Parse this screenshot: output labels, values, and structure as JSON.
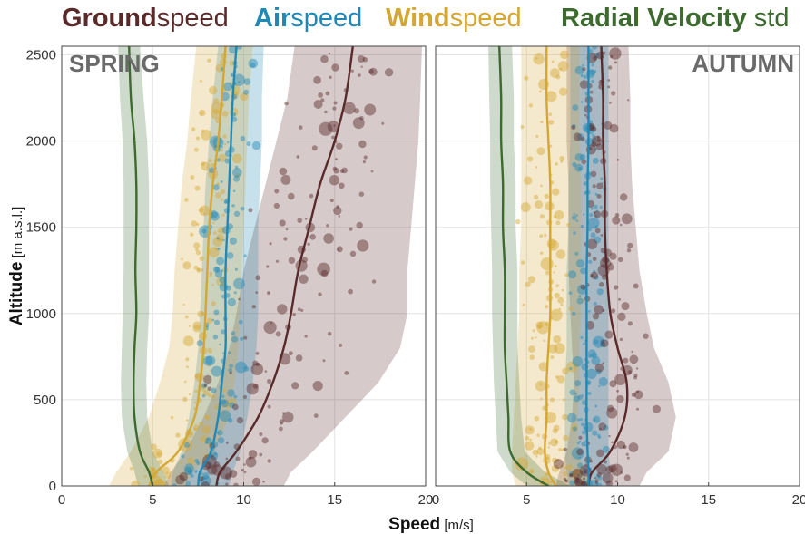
{
  "legend": {
    "groundspeed": {
      "bold": "Ground",
      "light": "speed"
    },
    "airspeed": {
      "bold": "Air",
      "light": "speed"
    },
    "windspeed": {
      "bold": "Wind",
      "light": "speed"
    },
    "radial": {
      "bold": "Radial Velocity",
      "light": "std"
    }
  },
  "colors": {
    "groundspeed": "#5a2a2a",
    "airspeed": "#2088b5",
    "windspeed": "#d4a632",
    "radial": "#3d6a2e"
  },
  "chart_data": [
    {
      "type": "line",
      "panel": "SPRING",
      "xlabel": "Speed",
      "xunit": "[m/s]",
      "ylabel": "Altitude",
      "yunit": "[m a.s.l.]",
      "xlim": [
        0,
        20
      ],
      "ylim": [
        0,
        2550
      ],
      "xticks": [
        0,
        5,
        10,
        15,
        20
      ],
      "yticks": [
        0,
        500,
        1000,
        1500,
        2000,
        2500
      ],
      "grid": true,
      "series": [
        {
          "name": "Groundspeed",
          "key": "groundspeed",
          "x": [
            8.5,
            8.7,
            9.6,
            10.8,
            11.6,
            12.2,
            12.6,
            13.0,
            13.6,
            14.2,
            15.0,
            15.6,
            16.0
          ],
          "y": [
            0,
            80,
            200,
            400,
            600,
            800,
            1000,
            1250,
            1500,
            1750,
            2000,
            2250,
            2550
          ],
          "band_lo": [
            5.6,
            6.0,
            6.8,
            7.8,
            8.6,
            9.2,
            9.6,
            10.0,
            10.6,
            11.2,
            11.8,
            12.4,
            12.8
          ],
          "band_hi": [
            12.2,
            12.6,
            13.8,
            15.6,
            17.4,
            18.6,
            19.0,
            19.0,
            19.2,
            19.4,
            19.6,
            19.7,
            19.8
          ]
        },
        {
          "name": "Airspeed",
          "key": "airspeed",
          "x": [
            7.5,
            7.6,
            8.2,
            8.6,
            8.8,
            9.0,
            9.0,
            9.0,
            9.1,
            9.2,
            9.3,
            9.4,
            9.6
          ],
          "y": [
            0,
            80,
            200,
            400,
            600,
            800,
            1000,
            1250,
            1500,
            1750,
            2000,
            2250,
            2550
          ],
          "band_lo": [
            6.0,
            6.1,
            6.6,
            7.0,
            7.3,
            7.5,
            7.6,
            7.7,
            7.8,
            7.9,
            8.1,
            8.3,
            8.6
          ],
          "band_hi": [
            9.2,
            9.4,
            9.8,
            10.2,
            10.5,
            10.7,
            10.8,
            10.8,
            10.8,
            10.9,
            11.0,
            11.0,
            11.1
          ]
        },
        {
          "name": "Windspeed",
          "key": "windspeed",
          "x": [
            4.8,
            5.2,
            6.4,
            7.3,
            7.6,
            7.8,
            7.9,
            8.0,
            8.1,
            8.3,
            8.6,
            8.8,
            9.0
          ],
          "y": [
            0,
            80,
            200,
            400,
            600,
            800,
            1000,
            1250,
            1500,
            1750,
            2000,
            2250,
            2550
          ],
          "band_lo": [
            2.6,
            3.0,
            3.8,
            4.8,
            5.4,
            5.9,
            6.1,
            6.2,
            6.4,
            6.6,
            6.9,
            7.1,
            7.4
          ],
          "band_hi": [
            6.8,
            7.2,
            8.4,
            9.2,
            9.5,
            9.7,
            9.8,
            9.9,
            10.0,
            10.1,
            10.2,
            10.3,
            10.5
          ]
        },
        {
          "name": "Radial Velocity std",
          "key": "radial",
          "x": [
            5.0,
            4.8,
            4.3,
            4.0,
            3.95,
            4.0,
            4.1,
            4.05,
            4.1,
            4.1,
            4.0,
            3.8,
            3.7
          ],
          "y": [
            0,
            80,
            200,
            400,
            600,
            800,
            1000,
            1250,
            1500,
            1750,
            2000,
            2250,
            2550
          ],
          "band_lo": [
            4.2,
            4.0,
            3.6,
            3.3,
            3.25,
            3.3,
            3.35,
            3.4,
            3.4,
            3.4,
            3.35,
            3.2,
            3.1
          ],
          "band_hi": [
            5.9,
            5.6,
            5.0,
            4.7,
            4.65,
            4.7,
            4.8,
            4.8,
            4.8,
            4.8,
            4.7,
            4.5,
            4.3
          ]
        }
      ]
    },
    {
      "type": "line",
      "panel": "AUTUMN",
      "xlabel": "Speed",
      "xunit": "[m/s]",
      "xlim": [
        0,
        20
      ],
      "ylim": [
        0,
        2550
      ],
      "xticks": [
        0,
        5,
        10,
        15,
        20
      ],
      "yticks": [
        0,
        500,
        1000,
        1500,
        2000,
        2500
      ],
      "grid": true,
      "series": [
        {
          "name": "Groundspeed",
          "key": "groundspeed",
          "x": [
            8.4,
            8.6,
            9.6,
            10.4,
            10.5,
            10.0,
            9.6,
            9.4,
            9.3,
            9.3,
            9.2,
            9.2,
            9.1
          ],
          "y": [
            0,
            80,
            200,
            400,
            600,
            800,
            1000,
            1250,
            1500,
            1750,
            2000,
            2250,
            2550
          ],
          "band_lo": [
            6.6,
            6.8,
            7.2,
            7.5,
            7.6,
            7.5,
            7.4,
            7.3,
            7.3,
            7.3,
            7.2,
            7.2,
            7.2
          ],
          "band_hi": [
            11.2,
            11.6,
            12.8,
            13.2,
            12.8,
            12.0,
            11.6,
            11.2,
            11.0,
            10.8,
            10.7,
            10.7,
            10.6
          ]
        },
        {
          "name": "Airspeed",
          "key": "airspeed",
          "x": [
            8.4,
            8.4,
            8.35,
            8.3,
            8.3,
            8.3,
            8.3,
            8.3,
            8.35,
            8.35,
            8.4,
            8.4,
            8.4
          ],
          "y": [
            0,
            80,
            200,
            400,
            600,
            800,
            1000,
            1250,
            1500,
            1750,
            2000,
            2250,
            2550
          ],
          "band_lo": [
            7.3,
            7.2,
            7.1,
            7.1,
            7.1,
            7.2,
            7.2,
            7.2,
            7.3,
            7.3,
            7.4,
            7.4,
            7.4
          ],
          "band_hi": [
            9.6,
            9.6,
            9.5,
            9.5,
            9.5,
            9.5,
            9.5,
            9.5,
            9.5,
            9.5,
            9.5,
            9.5,
            9.5
          ]
        },
        {
          "name": "Windspeed",
          "key": "windspeed",
          "x": [
            6.6,
            6.2,
            6.0,
            6.1,
            6.1,
            6.2,
            6.3,
            6.3,
            6.3,
            6.3,
            6.2,
            6.1,
            6.1
          ],
          "y": [
            0,
            80,
            200,
            400,
            600,
            800,
            1000,
            1250,
            1500,
            1750,
            2000,
            2250,
            2550
          ],
          "band_lo": [
            4.4,
            4.2,
            4.2,
            4.3,
            4.4,
            4.5,
            4.6,
            4.6,
            4.7,
            4.7,
            4.7,
            4.7,
            4.7
          ],
          "band_hi": [
            8.6,
            8.2,
            7.8,
            7.8,
            7.9,
            7.9,
            8.0,
            8.0,
            8.0,
            8.0,
            7.9,
            7.9,
            7.9
          ]
        },
        {
          "name": "Radial Velocity std",
          "key": "radial",
          "x": [
            6.2,
            5.0,
            4.1,
            4.0,
            3.9,
            3.8,
            3.8,
            3.8,
            3.7,
            3.7,
            3.6,
            3.6,
            3.5
          ],
          "y": [
            0,
            80,
            200,
            400,
            600,
            800,
            1000,
            1250,
            1500,
            1750,
            2000,
            2250,
            2550
          ],
          "band_lo": [
            5.0,
            4.1,
            3.4,
            3.3,
            3.2,
            3.15,
            3.1,
            3.1,
            3.05,
            3.0,
            3.0,
            2.95,
            2.9
          ],
          "band_hi": [
            7.4,
            6.0,
            4.9,
            4.7,
            4.6,
            4.5,
            4.5,
            4.5,
            4.4,
            4.4,
            4.3,
            4.3,
            4.2
          ]
        }
      ]
    }
  ]
}
